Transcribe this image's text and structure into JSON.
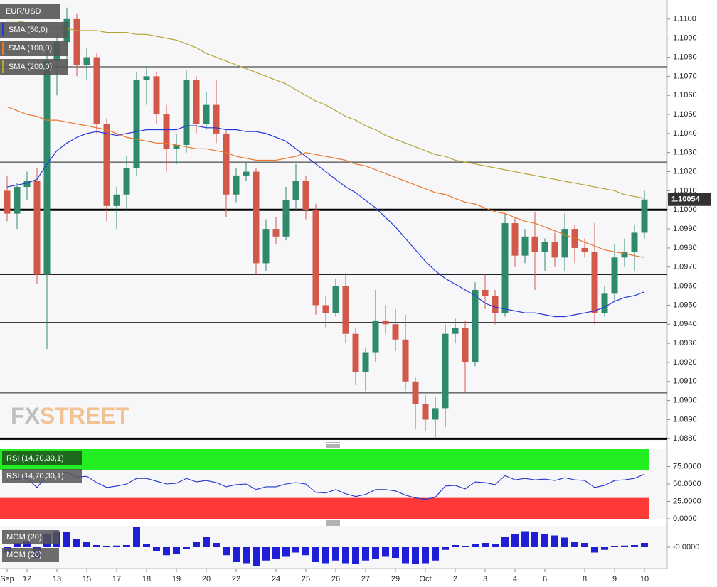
{
  "chart_data": [
    {
      "type": "candlestick",
      "title": "EUR/USD",
      "categories": [
        "Sep",
        null,
        "12",
        null,
        null,
        "13",
        null,
        null,
        "15",
        null,
        null,
        "17",
        null,
        null,
        "18",
        null,
        null,
        "19",
        null,
        null,
        "20",
        null,
        null,
        "22",
        null,
        null,
        null,
        "24",
        null,
        null,
        "25",
        null,
        null,
        "26",
        null,
        null,
        "27",
        null,
        null,
        "29",
        null,
        null,
        "Oct",
        null,
        null,
        "2",
        null,
        null,
        "3",
        null,
        null,
        "4",
        null,
        null,
        "6",
        null,
        null,
        null,
        "8",
        null,
        null,
        "9",
        null,
        null,
        "10"
      ],
      "open": [
        1.101,
        1.0998,
        1.1012,
        1.1015,
        1.0966,
        1.1078,
        1.1088,
        1.11,
        1.1076,
        1.108,
        1.1045,
        1.1002,
        1.1008,
        1.1022,
        1.1068,
        1.107,
        1.105,
        1.1032,
        1.1034,
        1.1068,
        1.1045,
        1.1055,
        1.104,
        1.1008,
        1.1018,
        1.102,
        1.0972,
        1.099,
        1.0986,
        1.1005,
        1.1015,
        1.1,
        1.095,
        1.0946,
        1.096,
        1.0935,
        1.0915,
        1.0925,
        1.0942,
        1.094,
        1.0932,
        1.091,
        1.0898,
        1.089,
        1.0896,
        1.0935,
        1.0938,
        1.092,
        1.0958,
        1.0955,
        1.0946,
        1.0993,
        1.0976,
        1.0986,
        1.0978,
        1.0983,
        1.0975,
        1.099,
        1.098,
        1.0978,
        1.0946,
        1.0956,
        1.0975,
        1.0978,
        1.0988
      ],
      "high": [
        1.1018,
        1.1014,
        1.102,
        1.1022,
        1.1085,
        1.1092,
        1.1106,
        1.1103,
        1.1085,
        1.1082,
        1.1048,
        1.1012,
        1.1028,
        1.1072,
        1.1075,
        1.1072,
        1.1055,
        1.104,
        1.1073,
        1.107,
        1.1062,
        1.1068,
        1.1042,
        1.1022,
        1.1025,
        1.1022,
        1.0995,
        1.0996,
        1.1012,
        1.1024,
        1.1018,
        1.1003,
        1.0955,
        1.0964,
        1.0967,
        1.0938,
        1.0928,
        1.0958,
        1.095,
        1.0948,
        1.0945,
        1.0912,
        1.0903,
        1.0902,
        1.094,
        1.0943,
        1.0942,
        1.0962,
        1.0966,
        1.0958,
        1.0998,
        1.0996,
        1.099,
        1.0999,
        1.0985,
        1.0988,
        1.0998,
        1.0992,
        1.0985,
        1.0993,
        1.096,
        1.0982,
        1.0985,
        1.0992,
        1.101
      ],
      "low": [
        1.0994,
        1.099,
        1.1005,
        1.0961,
        1.0927,
        1.106,
        1.1075,
        1.107,
        1.1068,
        1.104,
        1.0994,
        1.099,
        1.1,
        1.1018,
        1.1055,
        1.1045,
        1.102,
        1.1024,
        1.103,
        1.104,
        1.1042,
        1.1035,
        1.0996,
        1.1004,
        1.1015,
        1.0966,
        1.0968,
        1.0982,
        1.0984,
        1.1,
        1.0995,
        1.0945,
        1.0938,
        1.0944,
        1.093,
        1.0908,
        1.0905,
        1.092,
        1.0935,
        1.0926,
        1.0905,
        1.0885,
        1.0884,
        1.088,
        1.0886,
        1.093,
        1.0904,
        1.0918,
        1.0948,
        1.094,
        1.0944,
        1.097,
        1.0972,
        1.0958,
        1.0968,
        1.097,
        1.0968,
        1.0972,
        1.0975,
        1.094,
        1.0944,
        1.0952,
        1.097,
        1.0968,
        1.0985
      ],
      "close": [
        1.0998,
        1.1012,
        1.1015,
        1.0966,
        1.1078,
        1.1088,
        1.11,
        1.1076,
        1.108,
        1.1045,
        1.1002,
        1.1008,
        1.1022,
        1.1068,
        1.107,
        1.105,
        1.1032,
        1.1034,
        1.1068,
        1.1045,
        1.1055,
        1.104,
        1.1008,
        1.1018,
        1.102,
        1.0972,
        1.099,
        1.0986,
        1.1005,
        1.1015,
        1.1,
        1.095,
        1.0946,
        1.096,
        1.0935,
        1.0915,
        1.0925,
        1.0942,
        1.094,
        1.0932,
        1.091,
        1.0898,
        1.089,
        1.0896,
        1.0935,
        1.0938,
        1.092,
        1.0958,
        1.0955,
        1.0946,
        1.0993,
        1.0976,
        1.0986,
        1.0978,
        1.0983,
        1.0975,
        1.099,
        1.098,
        1.0978,
        1.0946,
        1.0956,
        1.0975,
        1.0978,
        1.0988,
        1.10054
      ],
      "up_color": "#2f8a6c",
      "down_color": "#d2584a",
      "series": [
        {
          "name": "SMA (50,0)",
          "color": "#2338d8",
          "values": [
            1.1012,
            1.1013,
            1.1014,
            1.1016,
            1.1024,
            1.1031,
            1.1035,
            1.1038,
            1.104,
            1.1041,
            1.104,
            1.1039,
            1.104,
            1.1041,
            1.1042,
            1.1042,
            1.1042,
            1.1042,
            1.1044,
            1.1044,
            1.1043,
            1.1043,
            1.1042,
            1.1042,
            1.1041,
            1.1041,
            1.104,
            1.1038,
            1.1036,
            1.1032,
            1.1028,
            1.1024,
            1.102,
            1.1016,
            1.1012,
            1.1009,
            1.1005,
            1.1001,
            1.0996,
            1.0991,
            1.0985,
            1.0979,
            1.0973,
            1.0968,
            1.0964,
            1.0961,
            1.0958,
            1.0955,
            1.0951,
            1.0949,
            1.0948,
            1.0947,
            1.0946,
            1.0946,
            1.0945,
            1.0944,
            1.0944,
            1.0945,
            1.0946,
            1.0947,
            1.0949,
            1.0952,
            1.0954,
            1.0955,
            1.0957
          ]
        },
        {
          "name": "SMA (100,0)",
          "color": "#e8772a",
          "values": [
            1.1054,
            1.1052,
            1.105,
            1.1049,
            1.1047,
            1.1047,
            1.1046,
            1.1045,
            1.1044,
            1.1043,
            1.1042,
            1.104,
            1.1038,
            1.1037,
            1.1036,
            1.1035,
            1.1035,
            1.1034,
            1.1033,
            1.1032,
            1.1032,
            1.1031,
            1.103,
            1.1028,
            1.1027,
            1.1026,
            1.1026,
            1.1026,
            1.1027,
            1.1028,
            1.103,
            1.1029,
            1.1028,
            1.1027,
            1.1026,
            1.1024,
            1.1023,
            1.1021,
            1.1019,
            1.1017,
            1.1015,
            1.1013,
            1.1011,
            1.1009,
            1.1008,
            1.1006,
            1.1004,
            1.1003,
            1.1001,
            1.0999,
            1.0998,
            1.0996,
            1.0994,
            1.0993,
            1.0991,
            1.0989,
            1.0987,
            1.0985,
            1.0983,
            1.0981,
            1.0979,
            1.0978,
            1.0977,
            1.0976,
            1.0975
          ]
        },
        {
          "name": "SMA (200,0)",
          "color": "#b5a432",
          "values": [
            1.1099,
            1.1099,
            1.1098,
            1.1097,
            1.1096,
            1.1095,
            1.1095,
            1.1094,
            1.1094,
            1.1094,
            1.1093,
            1.1093,
            1.1093,
            1.1092,
            1.1092,
            1.1091,
            1.109,
            1.1089,
            1.1087,
            1.1085,
            1.1082,
            1.108,
            1.1078,
            1.1076,
            1.1074,
            1.1072,
            1.107,
            1.1068,
            1.1066,
            1.1063,
            1.106,
            1.1057,
            1.1055,
            1.1052,
            1.1049,
            1.1047,
            1.1044,
            1.1042,
            1.1039,
            1.1037,
            1.1035,
            1.1033,
            1.1031,
            1.1029,
            1.1028,
            1.1026,
            1.1025,
            1.1024,
            1.1023,
            1.1022,
            1.1021,
            1.102,
            1.1019,
            1.1018,
            1.1017,
            1.1016,
            1.1015,
            1.1014,
            1.1013,
            1.1012,
            1.1011,
            1.101,
            1.1008,
            1.1007,
            1.1006
          ]
        }
      ],
      "levels": [
        1.1075,
        1.1025,
        1.0966,
        1.0941,
        1.0904
      ],
      "major_levels": [
        1.1,
        1.088
      ],
      "last_price": 1.10054,
      "ylim": [
        1.0879,
        1.111
      ],
      "yticks": [
        {
          "value": 1.088,
          "label": "1.0880"
        },
        {
          "value": 1.089,
          "label": "1.0890"
        },
        {
          "value": 1.09,
          "label": "1.0900"
        },
        {
          "value": 1.091,
          "label": "1.0910"
        },
        {
          "value": 1.092,
          "label": "1.0920"
        },
        {
          "value": 1.093,
          "label": "1.0930"
        },
        {
          "value": 1.094,
          "label": "1.0940"
        },
        {
          "value": 1.095,
          "label": "1.0950"
        },
        {
          "value": 1.096,
          "label": "1.0960"
        },
        {
          "value": 1.097,
          "label": "1.0970"
        },
        {
          "value": 1.098,
          "label": "1.0980"
        },
        {
          "value": 1.099,
          "label": "1.0990"
        },
        {
          "value": 1.1,
          "label": "1.1000"
        },
        {
          "value": 1.101,
          "label": "1.1010"
        },
        {
          "value": 1.102,
          "label": "1.1020"
        },
        {
          "value": 1.103,
          "label": "1.1030"
        },
        {
          "value": 1.104,
          "label": "1.1040"
        },
        {
          "value": 1.105,
          "label": "1.1050"
        },
        {
          "value": 1.106,
          "label": "1.1060"
        },
        {
          "value": 1.107,
          "label": "1.1070"
        },
        {
          "value": 1.108,
          "label": "1.1080"
        },
        {
          "value": 1.109,
          "label": "1.1090"
        },
        {
          "value": 1.11,
          "label": "1.1100"
        }
      ]
    },
    {
      "type": "line",
      "title": "RSI (14,70,30,1)",
      "color": "#2233cc",
      "values": [
        55,
        57,
        58,
        45,
        62,
        64,
        67,
        60,
        61,
        52,
        45,
        47,
        50,
        58,
        58,
        54,
        50,
        51,
        58,
        53,
        55,
        52,
        46,
        49,
        50,
        42,
        46,
        46,
        50,
        52,
        50,
        38,
        37,
        42,
        36,
        32,
        35,
        42,
        42,
        40,
        34,
        30,
        28,
        31,
        47,
        48,
        43,
        53,
        52,
        49,
        62,
        56,
        58,
        56,
        57,
        55,
        59,
        56,
        55,
        45,
        48,
        55,
        56,
        58,
        64
      ],
      "overbought": 70,
      "oversold": 30,
      "overbought_color": "#22ee22",
      "oversold_color": "#ff3838",
      "ylim": [
        0,
        100
      ],
      "yticks": [
        {
          "value": 0,
          "label": "0.0000"
        },
        {
          "value": 25,
          "label": "25.0000"
        },
        {
          "value": 50,
          "label": "50.0000"
        },
        {
          "value": 75,
          "label": "75.0000"
        }
      ]
    },
    {
      "type": "bar",
      "title": "MOM (20)",
      "color": "#1f1fd6",
      "values": [
        -0.001,
        0.0008,
        0.0012,
        -0.002,
        0.0025,
        0.003,
        0.0028,
        0.0015,
        0.001,
        0.0004,
        0.0002,
        0.0003,
        0.0004,
        0.0038,
        0.0006,
        -0.0008,
        -0.0015,
        -0.0012,
        -0.0004,
        0.001,
        0.002,
        0.0008,
        -0.0015,
        -0.0028,
        -0.003,
        -0.0035,
        -0.0025,
        -0.0022,
        -0.0018,
        -0.001,
        -0.0015,
        -0.0028,
        -0.003,
        -0.0025,
        -0.003,
        -0.0032,
        -0.0025,
        -0.0022,
        -0.0018,
        -0.002,
        -0.003,
        -0.0032,
        -0.003,
        -0.0025,
        -0.0005,
        0.0004,
        0.0002,
        0.0006,
        0.0008,
        0.0006,
        0.002,
        0.0025,
        0.003,
        0.0028,
        0.0025,
        0.0022,
        0.0018,
        0.001,
        0.0008,
        -0.001,
        -0.0005,
        0.0002,
        0.0003,
        0.0004,
        0.0008
      ],
      "ylim": [
        -0.004,
        0.004
      ],
      "yticks": [
        {
          "value": 0,
          "label": "-0.0000"
        }
      ]
    }
  ],
  "watermark": [
    "FX",
    "STREET"
  ]
}
